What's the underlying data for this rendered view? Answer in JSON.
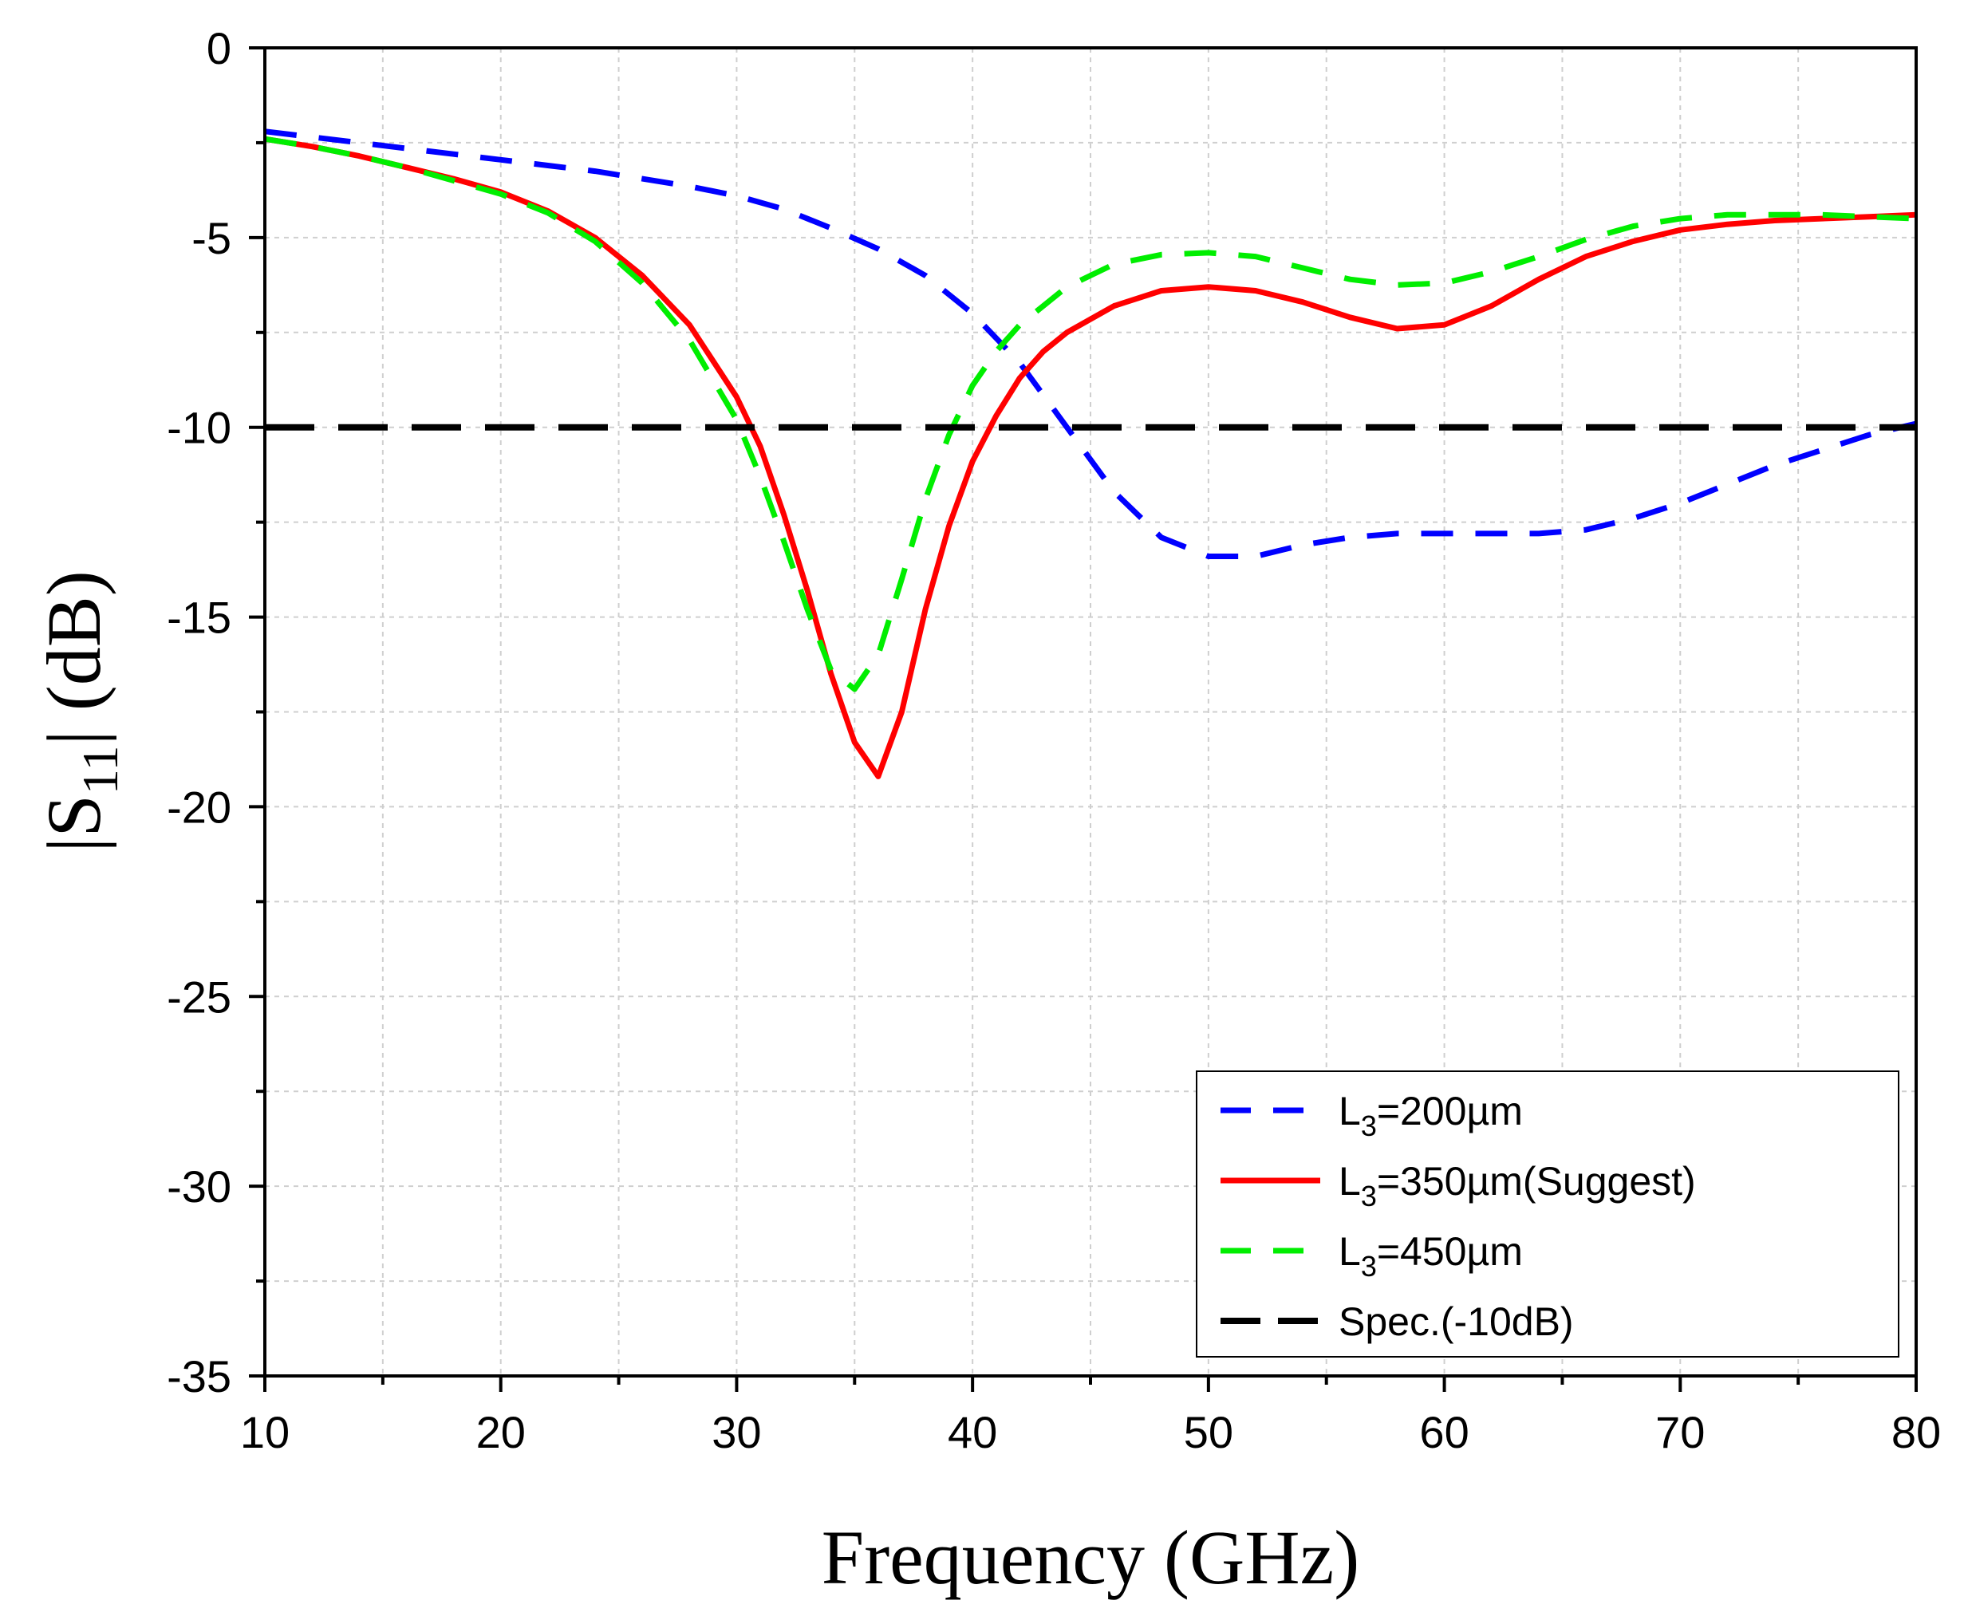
{
  "chart_data": {
    "type": "line",
    "xlabel": "Frequency (GHz)",
    "ylabel": {
      "prefix": "|S",
      "sub": "11",
      "suffix": "| (dB)"
    },
    "xlim": [
      10,
      80
    ],
    "ylim": [
      -35,
      0
    ],
    "xticks": [
      10,
      20,
      30,
      40,
      50,
      60,
      70,
      80
    ],
    "yticks": [
      0,
      -5,
      -10,
      -15,
      -20,
      -25,
      -30,
      -35
    ],
    "grid": true,
    "legend_position": "bottom-right",
    "series": [
      {
        "name": "L3=200µm",
        "legend": {
          "main": "L",
          "sub": "3",
          "rest": "=200µm"
        },
        "color": "#0000ff",
        "style": "dashed",
        "x": [
          10,
          12,
          14,
          16,
          18,
          20,
          22,
          24,
          26,
          28,
          30,
          32,
          34,
          36,
          38,
          40,
          42,
          44,
          46,
          48,
          50,
          52,
          54,
          56,
          58,
          60,
          62,
          64,
          66,
          68,
          70,
          72,
          74,
          76,
          78,
          80
        ],
        "y": [
          -2.2,
          -2.35,
          -2.5,
          -2.65,
          -2.8,
          -2.95,
          -3.1,
          -3.25,
          -3.45,
          -3.65,
          -3.9,
          -4.25,
          -4.75,
          -5.3,
          -6.0,
          -7.0,
          -8.3,
          -10.0,
          -11.7,
          -12.9,
          -13.4,
          -13.4,
          -13.1,
          -12.9,
          -12.8,
          -12.8,
          -12.8,
          -12.8,
          -12.7,
          -12.4,
          -12.0,
          -11.5,
          -11.0,
          -10.6,
          -10.2,
          -9.9
        ]
      },
      {
        "name": "L3=350µm(Suggest)",
        "legend": {
          "main": "L",
          "sub": "3",
          "rest": "=350µm(Suggest)"
        },
        "color": "#ff0000",
        "style": "solid",
        "x": [
          10,
          12,
          14,
          16,
          18,
          20,
          22,
          24,
          26,
          28,
          30,
          31,
          32,
          33,
          34,
          35,
          36,
          37,
          38,
          39,
          40,
          41,
          42,
          43,
          44,
          46,
          48,
          50,
          52,
          54,
          56,
          58,
          60,
          62,
          64,
          66,
          68,
          70,
          72,
          74,
          76,
          78,
          80
        ],
        "y": [
          -2.4,
          -2.6,
          -2.85,
          -3.15,
          -3.45,
          -3.8,
          -4.3,
          -5.0,
          -6.0,
          -7.3,
          -9.2,
          -10.5,
          -12.3,
          -14.3,
          -16.5,
          -18.3,
          -19.2,
          -17.5,
          -14.8,
          -12.6,
          -10.9,
          -9.7,
          -8.7,
          -8.0,
          -7.5,
          -6.8,
          -6.4,
          -6.3,
          -6.4,
          -6.7,
          -7.1,
          -7.4,
          -7.3,
          -6.8,
          -6.1,
          -5.5,
          -5.1,
          -4.8,
          -4.65,
          -4.55,
          -4.5,
          -4.45,
          -4.4
        ]
      },
      {
        "name": "L3=450µm",
        "legend": {
          "main": "L",
          "sub": "3",
          "rest": "=450µm"
        },
        "color": "#00ee00",
        "style": "dashed",
        "x": [
          10,
          12,
          14,
          16,
          18,
          20,
          22,
          24,
          26,
          28,
          30,
          31,
          32,
          33,
          34,
          35,
          36,
          37,
          38,
          39,
          40,
          41,
          42,
          44,
          46,
          48,
          50,
          52,
          54,
          56,
          58,
          60,
          62,
          64,
          66,
          68,
          70,
          72,
          74,
          76,
          78,
          80
        ],
        "y": [
          -2.4,
          -2.6,
          -2.85,
          -3.15,
          -3.5,
          -3.85,
          -4.35,
          -5.1,
          -6.2,
          -7.7,
          -9.8,
          -11.3,
          -13.0,
          -14.8,
          -16.4,
          -16.9,
          -16.0,
          -14.0,
          -11.9,
          -10.2,
          -8.9,
          -8.0,
          -7.3,
          -6.3,
          -5.7,
          -5.45,
          -5.4,
          -5.5,
          -5.8,
          -6.1,
          -6.25,
          -6.2,
          -5.9,
          -5.5,
          -5.05,
          -4.7,
          -4.5,
          -4.4,
          -4.4,
          -4.4,
          -4.45,
          -4.5
        ]
      },
      {
        "name": "Spec.(-10dB)",
        "legend": {
          "main": "Spec.(-10dB)",
          "sub": "",
          "rest": ""
        },
        "color": "#000000",
        "style": "longdash",
        "x": [
          10,
          80
        ],
        "y": [
          -10,
          -10
        ]
      }
    ]
  }
}
